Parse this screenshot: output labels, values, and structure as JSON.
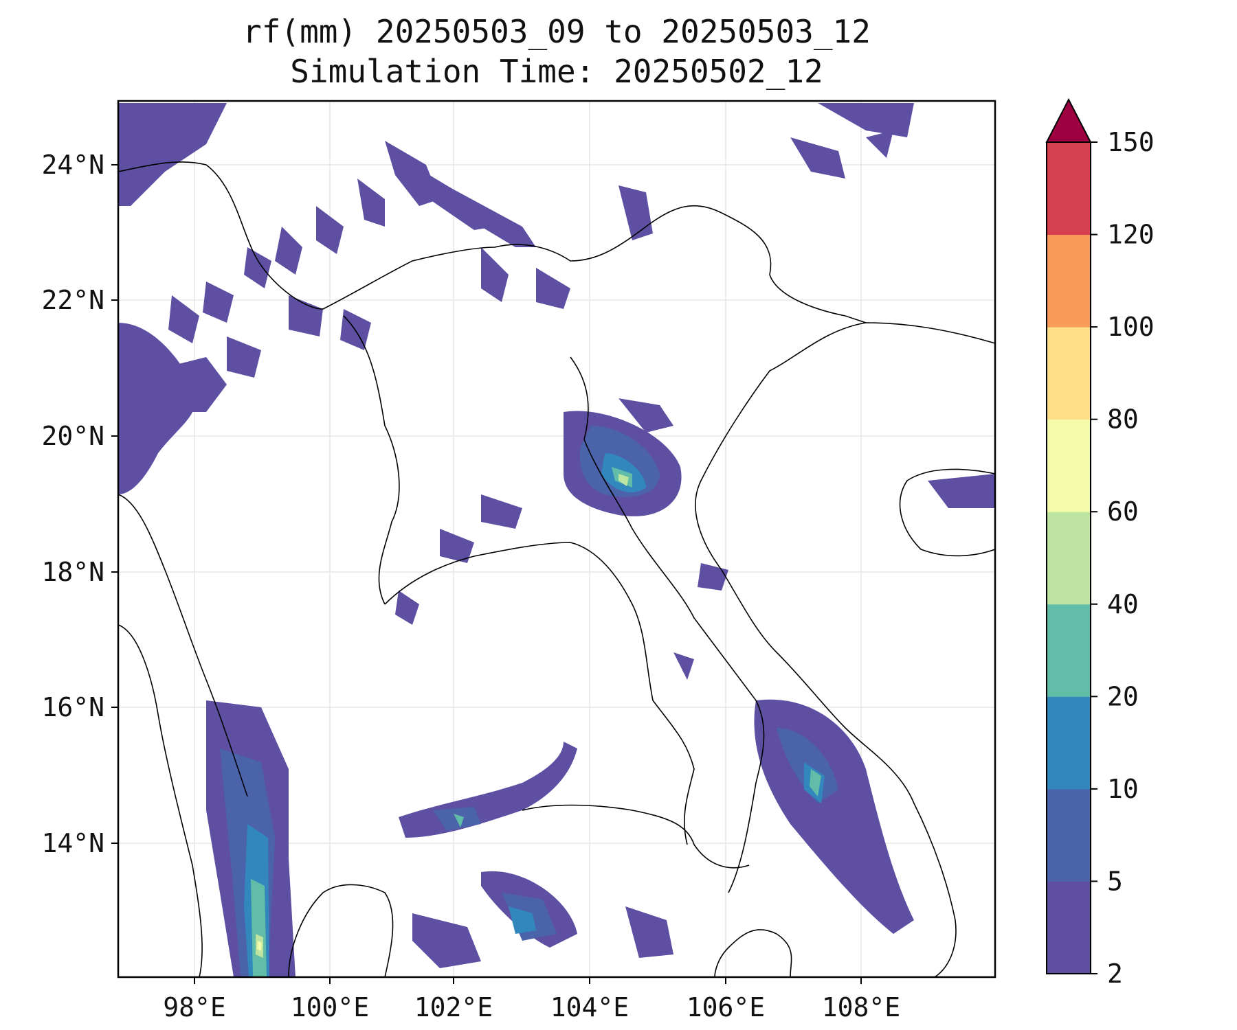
{
  "title": {
    "line1": "rf(mm) 20250503_09 to 20250503_12",
    "line2": "Simulation Time: 20250502_12"
  },
  "map": {
    "lon_ticks": [
      "98°E",
      "100°E",
      "102°E",
      "104°E",
      "106°E",
      "108°E"
    ],
    "lat_ticks": [
      "24°N",
      "22°N",
      "20°N",
      "18°N",
      "16°N",
      "14°N"
    ],
    "gridlines": true,
    "variable": "rf(mm)",
    "rain_colors": [
      "#5e4fa2",
      "#4a63ab",
      "#3287bc",
      "#62bda8",
      "#bde4a0",
      "#f3fbab",
      "#fddf8a",
      "#f99b5a",
      "#d63f4f",
      "#9e0142"
    ]
  },
  "colorbar": {
    "levels": [
      "2",
      "5",
      "10",
      "20",
      "40",
      "60",
      "80",
      "100",
      "120",
      "150"
    ],
    "colors": [
      "#5e4fa2",
      "#4a63ab",
      "#3287bc",
      "#62bda8",
      "#bde4a0",
      "#f3fbab",
      "#fddf8a",
      "#f99b5a",
      "#d63f4f"
    ],
    "extend_color": "#9e0142",
    "extend": "max"
  }
}
